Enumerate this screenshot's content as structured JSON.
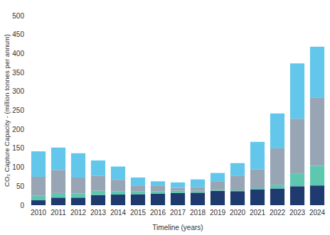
{
  "chart_data": {
    "type": "bar",
    "stacked": true,
    "grid": false,
    "y_label": "CO₂ Capture Capacity - (million tonnes per annum)",
    "x_label": "Timeline (years)",
    "categories": [
      "2010",
      "2011",
      "2012",
      "2013",
      "2014",
      "2015",
      "2016",
      "2017",
      "2018",
      "2019",
      "2020",
      "2021",
      "2022",
      "2023",
      "2024"
    ],
    "series": [
      {
        "color": "#1f3a6e",
        "values": [
          13,
          20,
          20,
          27,
          28,
          29,
          30,
          32,
          33,
          38,
          37,
          42,
          44,
          50,
          52
        ]
      },
      {
        "color": "#5ec7b0",
        "values": [
          12,
          12,
          11,
          11,
          9,
          8,
          7,
          6,
          5,
          2,
          2,
          3,
          10,
          34,
          52
        ]
      },
      {
        "color": "#97a5b5",
        "values": [
          50,
          61,
          42,
          40,
          30,
          15,
          15,
          8,
          10,
          22,
          38,
          49,
          96,
          144,
          179
        ]
      },
      {
        "color": "#62c7ea",
        "values": [
          67,
          59,
          64,
          40,
          35,
          21,
          11,
          14,
          20,
          23,
          34,
          73,
          92,
          146,
          135
        ]
      }
    ],
    "ylim": [
      0,
      500
    ],
    "yticks": [
      0,
      50,
      100,
      150,
      200,
      250,
      300,
      350,
      400,
      450,
      500
    ]
  }
}
